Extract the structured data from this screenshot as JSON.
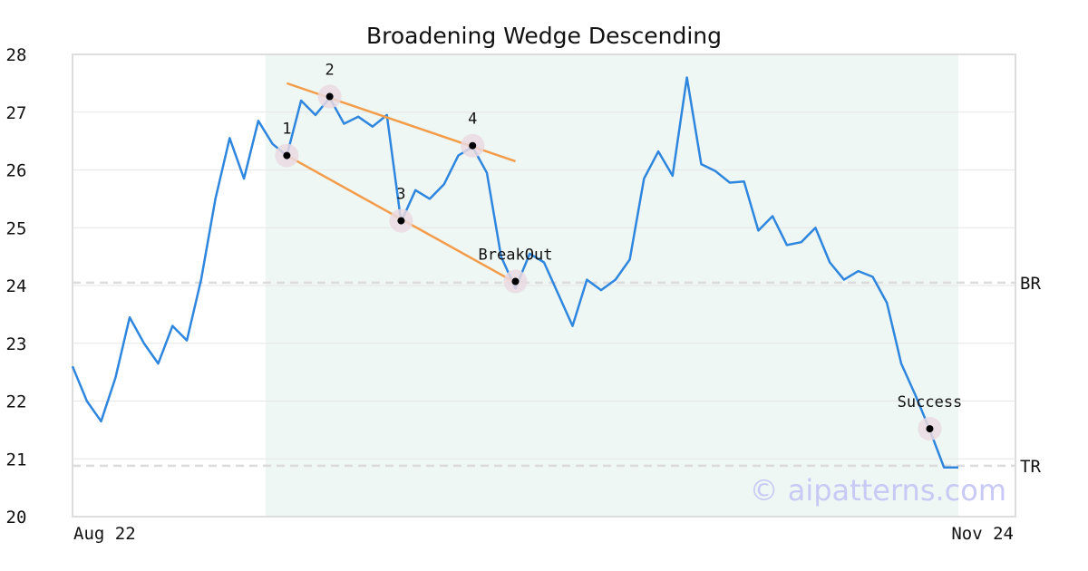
{
  "chart_data": {
    "type": "line",
    "title": "Broadening Wedge Descending",
    "ylim": [
      20,
      28
    ],
    "yticks": [
      "20",
      "21",
      "22",
      "23",
      "24",
      "25",
      "26",
      "27",
      "28"
    ],
    "x_labels": [
      "Aug 22",
      "Nov 24"
    ],
    "grid": true,
    "series": [
      {
        "color": "#2e86de",
        "values": [
          22.6,
          22.0,
          21.65,
          22.4,
          23.45,
          23.0,
          22.65,
          23.3,
          23.05,
          24.1,
          25.5,
          26.55,
          25.85,
          26.85,
          26.45,
          26.25,
          27.2,
          26.95,
          27.25,
          26.8,
          26.92,
          26.75,
          26.95,
          25.1,
          25.65,
          25.5,
          25.75,
          26.25,
          26.4,
          25.95,
          24.5,
          23.95,
          24.55,
          24.4,
          23.85,
          23.3,
          24.1,
          23.92,
          24.1,
          24.45,
          25.85,
          26.32,
          25.9,
          27.6,
          26.1,
          25.98,
          25.78,
          25.8,
          24.95,
          25.2,
          24.7,
          24.75,
          25.0,
          24.4,
          24.1,
          24.25,
          24.15,
          23.7,
          22.65,
          22.1,
          21.5,
          20.85,
          20.85
        ]
      }
    ],
    "pattern_window": {
      "start_index": 13,
      "end_index": 62
    },
    "trend_lines": [
      {
        "color": "#f39c4a",
        "from": {
          "index": 15,
          "value": 27.5
        },
        "to": {
          "index": 31,
          "value": 26.15
        }
      },
      {
        "color": "#f39c4a",
        "from": {
          "index": 15,
          "value": 26.25
        },
        "to": {
          "index": 31,
          "value": 24.05
        }
      }
    ],
    "points": [
      {
        "label": "1",
        "index": 15,
        "value": 26.25
      },
      {
        "label": "2",
        "index": 18,
        "value": 27.27
      },
      {
        "label": "3",
        "index": 23,
        "value": 25.12
      },
      {
        "label": "4",
        "index": 28,
        "value": 26.42
      },
      {
        "label": "BreakOut",
        "index": 31,
        "value": 24.07
      },
      {
        "label": "Success",
        "index": 60,
        "value": 21.52
      }
    ],
    "levels": [
      {
        "label": "BR",
        "value": 24.05
      },
      {
        "label": "TR",
        "value": 20.88
      }
    ],
    "watermark": "© aipatterns.com",
    "colors": {
      "line": "#2e86de",
      "trend": "#f39c4a",
      "window": "#eef7f3",
      "marker_halo": "#ead9e0"
    }
  }
}
